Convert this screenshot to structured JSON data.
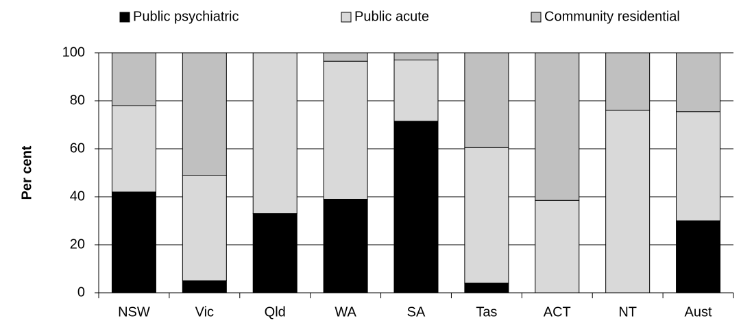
{
  "chart_data": {
    "type": "stacked-bar",
    "y_label": "Per cent",
    "categories": [
      "NSW",
      "Vic",
      "Qld",
      "WA",
      "SA",
      "Tas",
      "ACT",
      "NT",
      "Aust"
    ],
    "series": [
      {
        "name": "Public psychiatric",
        "color": "#000000",
        "values": [
          42,
          5,
          33,
          39,
          71.5,
          4,
          0,
          0,
          30
        ]
      },
      {
        "name": "Public acute",
        "color": "#d9d9d9",
        "values": [
          36,
          44,
          67,
          57.5,
          25.5,
          56.5,
          38.5,
          76,
          45.5
        ]
      },
      {
        "name": "Community residential",
        "color": "#c0c0c0",
        "values": [
          22,
          51,
          0,
          3.5,
          3,
          39.5,
          61.5,
          24,
          24.5
        ]
      }
    ],
    "ylim": [
      0,
      100
    ],
    "yticks": [
      0,
      20,
      40,
      60,
      80,
      100
    ],
    "grid": true,
    "legend": "top"
  }
}
